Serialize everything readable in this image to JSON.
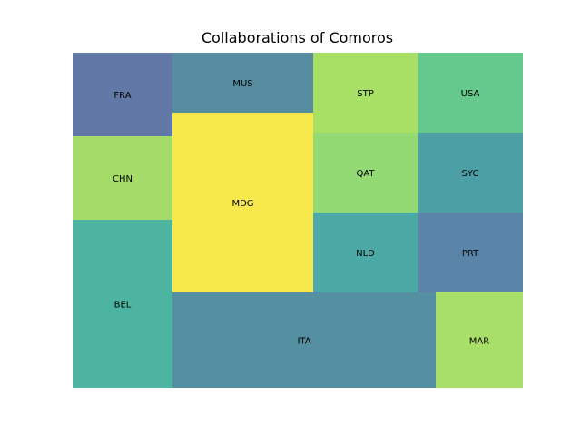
{
  "chart_data": {
    "type": "treemap",
    "title": "Collaborations of Comoros",
    "xlabel": "",
    "ylabel": "",
    "grid": false,
    "legend": "none",
    "items": [
      {
        "label": "FRA",
        "value": 10,
        "color": "#6278a6"
      },
      {
        "label": "CHN",
        "value": 10,
        "color": "#a4db69"
      },
      {
        "label": "BEL",
        "value": 20,
        "color": "#4cb4a0"
      },
      {
        "label": "MDG",
        "value": 31,
        "color": "#f7e94b"
      },
      {
        "label": "MUS",
        "value": 10,
        "color": "#558ca0"
      },
      {
        "label": "ITA",
        "value": 30,
        "color": "#558fa2"
      },
      {
        "label": "STP",
        "value": 10,
        "color": "#a8e066"
      },
      {
        "label": "QAT",
        "value": 10,
        "color": "#93d974"
      },
      {
        "label": "NLD",
        "value": 10,
        "color": "#4baaa6"
      },
      {
        "label": "USA",
        "value": 10,
        "color": "#65c98c"
      },
      {
        "label": "SYC",
        "value": 10,
        "color": "#4d9fa6"
      },
      {
        "label": "PRT",
        "value": 10,
        "color": "#5a85a8"
      },
      {
        "label": "MAR",
        "value": 10,
        "color": "#a8df68"
      }
    ]
  }
}
